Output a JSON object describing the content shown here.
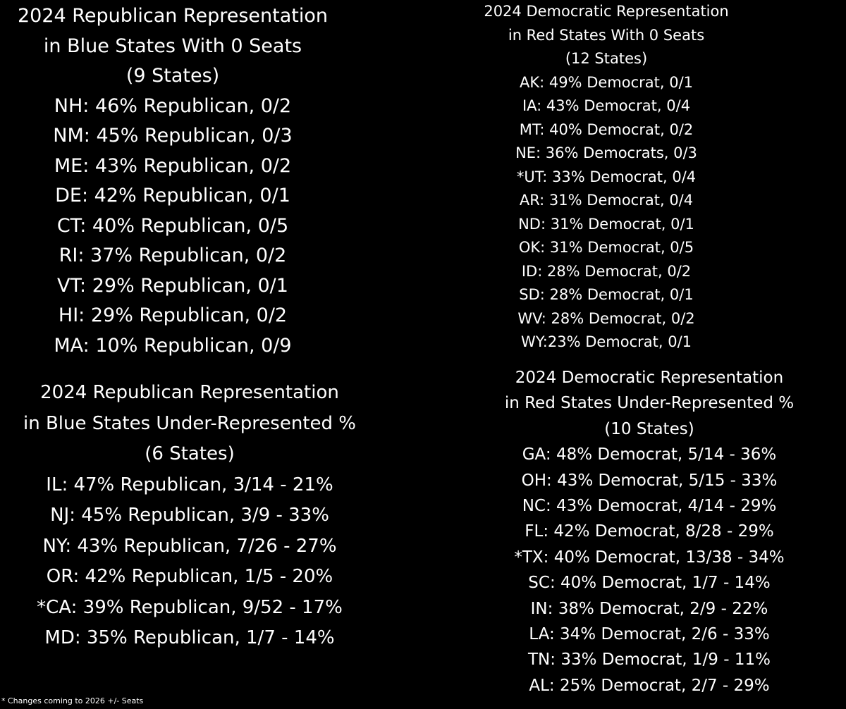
{
  "republican_zero": {
    "title_line1": "2024 Republican Representation",
    "title_line2": "in Blue States With 0 Seats",
    "count": "(9 States)",
    "rows": [
      "NH: 46% Republican, 0/2",
      "NM: 45% Republican, 0/3",
      "ME: 43% Republican, 0/2",
      "DE: 42% Republican, 0/1",
      "CT: 40% Republican, 0/5",
      "RI: 37% Republican, 0/2",
      "VT: 29% Republican, 0/1",
      "HI: 29% Republican, 0/2",
      "MA: 10% Republican, 0/9"
    ]
  },
  "democratic_zero": {
    "title_line1": "2024 Democratic Representation",
    "title_line2": "in Red States With 0 Seats",
    "count": "(12 States)",
    "rows": [
      "AK: 49% Democrat, 0/1",
      "IA: 43% Democrat, 0/4",
      "MT: 40% Democrat, 0/2",
      "NE: 36% Democrats, 0/3",
      "*UT: 33% Democrat, 0/4",
      "AR: 31% Democrat, 0/4",
      "ND: 31% Democrat, 0/1",
      "OK: 31% Democrat, 0/5",
      "ID: 28% Democrat, 0/2",
      "SD: 28% Democrat, 0/1",
      "WV: 28% Democrat, 0/2",
      "WY:23% Democrat, 0/1"
    ]
  },
  "republican_under": {
    "title_line1": "2024 Republican Representation",
    "title_line2": "in Blue States Under-Represented %",
    "count": "(6 States)",
    "rows": [
      "IL: 47% Republican, 3/14 - 21%",
      "NJ: 45% Republican, 3/9 - 33%",
      "NY: 43% Republican, 7/26 - 27%",
      "OR: 42% Republican, 1/5 - 20%",
      "*CA: 39% Republican, 9/52 - 17%",
      "MD: 35% Republican, 1/7 - 14%"
    ]
  },
  "democratic_under": {
    "title_line1": "2024 Democratic Representation",
    "title_line2": "in Red States Under-Represented %",
    "count": "(10 States)",
    "rows": [
      "GA: 48% Democrat, 5/14 - 36%",
      "OH: 43% Democrat, 5/15 - 33%",
      "NC: 43% Democrat, 4/14 - 29%",
      "FL: 42% Democrat, 8/28 - 29%",
      "*TX: 40% Democrat, 13/38 - 34%",
      "SC: 40% Democrat, 1/7 - 14%",
      "IN: 38% Democrat, 2/9 - 22%",
      "LA: 34% Democrat, 2/6 - 33%",
      "TN: 33% Democrat, 1/9 - 11%",
      "AL: 25% Democrat, 2/7 - 29%"
    ]
  },
  "footnote": "* Changes coming to 2026 +/- Seats",
  "colors": {
    "background": "#000000",
    "text": "#ffffff"
  }
}
